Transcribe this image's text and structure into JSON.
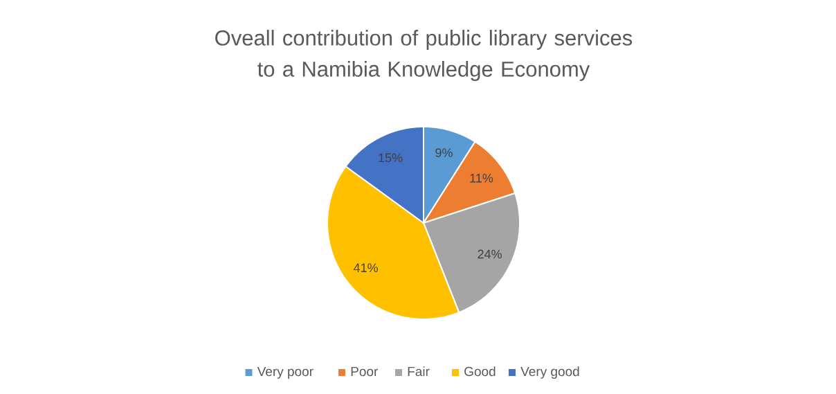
{
  "chart_data": {
    "type": "pie",
    "title": "Oveall contribution of public library services to a Namibia Knowledge Economy",
    "categories": [
      "Very poor",
      "Poor",
      "Fair",
      "Good",
      "Very good"
    ],
    "values": [
      9,
      11,
      24,
      41,
      15
    ],
    "colors": [
      "#5b9bd5",
      "#ed7d31",
      "#a5a5a5",
      "#ffc000",
      "#4472c4"
    ],
    "value_labels": [
      "9%",
      "11%",
      "24%",
      "41%",
      "15%"
    ],
    "legend": "bottom"
  }
}
